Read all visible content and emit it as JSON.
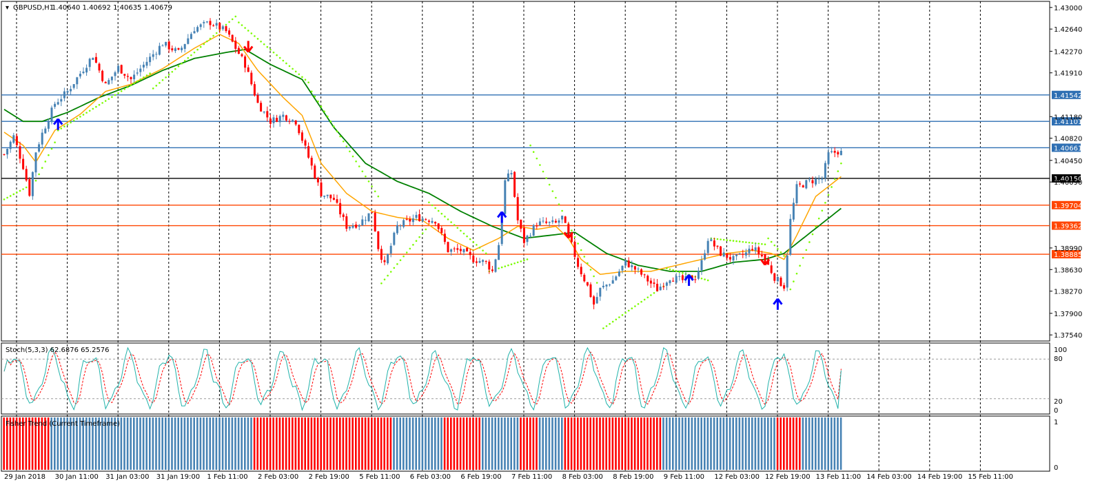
{
  "main_panel": {
    "symbol_label": "GBPUSD,H1",
    "ohlc_label": "1.40640 1.40692 1.40635 1.40679",
    "price_ticks": [
      "1.43000",
      "1.42640",
      "1.42270",
      "1.41910",
      "1.41180",
      "1.40820",
      "1.40450",
      "1.40090",
      "1.38990",
      "1.38630",
      "1.38270",
      "1.37900",
      "1.37540"
    ],
    "levels": [
      {
        "label": "1.41542",
        "value": 1.41542,
        "color": "#2e6fb3",
        "label_bg": "#2e6fb3"
      },
      {
        "label": "1.41101",
        "value": 1.41101,
        "color": "#2e6fb3",
        "label_bg": "#2e6fb3"
      },
      {
        "label": "1.40661",
        "value": 1.40661,
        "color": "#2e6fb3",
        "label_bg": "#2e6fb3"
      },
      {
        "label": "1.40150",
        "value": 1.4015,
        "color": "#000000",
        "label_bg": "#000000"
      },
      {
        "label": "1.39704",
        "value": 1.39704,
        "color": "#ff4500",
        "label_bg": "#ff4500"
      },
      {
        "label": "1.39362",
        "value": 1.39362,
        "color": "#ff4500",
        "label_bg": "#ff4500"
      },
      {
        "label": "1.38885",
        "value": 1.38885,
        "color": "#ff4500",
        "label_bg": "#ff4500"
      }
    ]
  },
  "stoch_panel": {
    "label": "Stoch(5,3,3) 62.6876 65.2576",
    "ticks": [
      "100",
      "80",
      "20",
      "0"
    ]
  },
  "trend_panel": {
    "label": "Fisher Trend (Current Timeframe)",
    "ticks": [
      "1",
      "0"
    ]
  },
  "x_labels": [
    "29 Jan 2018",
    "30 Jan 11:00",
    "31 Jan 03:00",
    "31 Jan 19:00",
    "1 Feb 11:00",
    "2 Feb 03:00",
    "2 Feb 19:00",
    "5 Feb 11:00",
    "6 Feb 03:00",
    "6 Feb 19:00",
    "7 Feb 11:00",
    "8 Feb 03:00",
    "8 Feb 19:00",
    "9 Feb 11:00",
    "12 Feb 03:00",
    "12 Feb 19:00",
    "13 Feb 11:00",
    "14 Feb 03:00",
    "14 Feb 19:00",
    "15 Feb 11:00"
  ],
  "colors": {
    "bull": "#4682b4",
    "bear": "#ff0000",
    "ma_fast": "#ffa500",
    "ma_slow": "#008000",
    "sar": "#7cfc00",
    "stoch_main": "#20b2aa",
    "stoch_signal": "#ff0000",
    "arrow_up": "#0000ff",
    "arrow_down": "#ff0000"
  },
  "chart_data": {
    "type": "candlestick",
    "symbol": "GBPUSD",
    "timeframe": "H1",
    "y_range": [
      1.3745,
      1.4309
    ],
    "price_path": [
      [
        0,
        1.4055
      ],
      [
        3,
        1.4085
      ],
      [
        6,
        1.4035
      ],
      [
        8,
        1.399
      ],
      [
        10,
        1.406
      ],
      [
        12,
        1.409
      ],
      [
        16,
        1.414
      ],
      [
        20,
        1.416
      ],
      [
        24,
        1.419
      ],
      [
        28,
        1.422
      ],
      [
        32,
        1.417
      ],
      [
        36,
        1.42
      ],
      [
        40,
        1.418
      ],
      [
        45,
        1.421
      ],
      [
        50,
        1.424
      ],
      [
        55,
        1.4225
      ],
      [
        60,
        1.4265
      ],
      [
        65,
        1.4275
      ],
      [
        70,
        1.426
      ],
      [
        76,
        1.4205
      ],
      [
        80,
        1.414
      ],
      [
        84,
        1.411
      ],
      [
        88,
        1.412
      ],
      [
        92,
        1.411
      ],
      [
        96,
        1.405
      ],
      [
        100,
        1.399
      ],
      [
        104,
        1.398
      ],
      [
        108,
        1.3935
      ],
      [
        112,
        1.394
      ],
      [
        116,
        1.396
      ],
      [
        118,
        1.39
      ],
      [
        120,
        1.387
      ],
      [
        124,
        1.3935
      ],
      [
        130,
        1.395
      ],
      [
        136,
        1.3945
      ],
      [
        140,
        1.3895
      ],
      [
        144,
        1.3895
      ],
      [
        148,
        1.388
      ],
      [
        152,
        1.3875
      ],
      [
        154,
        1.386
      ],
      [
        156,
        1.3905
      ],
      [
        158,
        1.401
      ],
      [
        160,
        1.4025
      ],
      [
        162,
        1.3945
      ],
      [
        164,
        1.391
      ],
      [
        168,
        1.394
      ],
      [
        174,
        1.394
      ],
      [
        176,
        1.395
      ],
      [
        178,
        1.392
      ],
      [
        181,
        1.387
      ],
      [
        184,
        1.3835
      ],
      [
        186,
        1.3805
      ],
      [
        188,
        1.383
      ],
      [
        192,
        1.3845
      ],
      [
        196,
        1.3875
      ],
      [
        200,
        1.386
      ],
      [
        204,
        1.384
      ],
      [
        206,
        1.383
      ],
      [
        210,
        1.385
      ],
      [
        214,
        1.3845
      ],
      [
        218,
        1.385
      ],
      [
        220,
        1.3875
      ],
      [
        222,
        1.3915
      ],
      [
        226,
        1.389
      ],
      [
        230,
        1.388
      ],
      [
        234,
        1.389
      ],
      [
        236,
        1.39
      ],
      [
        240,
        1.388
      ],
      [
        243,
        1.385
      ],
      [
        246,
        1.3835
      ],
      [
        248,
        1.3945
      ],
      [
        250,
        1.4
      ],
      [
        254,
        1.401
      ],
      [
        258,
        1.4015
      ],
      [
        260,
        1.4055
      ],
      [
        263,
        1.406
      ],
      [
        264,
        1.4058
      ]
    ],
    "ma_fast": [
      [
        0,
        1.4092
      ],
      [
        6,
        1.407
      ],
      [
        10,
        1.4042
      ],
      [
        16,
        1.4095
      ],
      [
        24,
        1.4122
      ],
      [
        32,
        1.416
      ],
      [
        40,
        1.4172
      ],
      [
        50,
        1.4198
      ],
      [
        60,
        1.4232
      ],
      [
        68,
        1.4255
      ],
      [
        74,
        1.424
      ],
      [
        80,
        1.4195
      ],
      [
        88,
        1.415
      ],
      [
        94,
        1.412
      ],
      [
        100,
        1.404
      ],
      [
        108,
        1.399
      ],
      [
        116,
        1.396
      ],
      [
        124,
        1.395
      ],
      [
        132,
        1.3945
      ],
      [
        140,
        1.3915
      ],
      [
        148,
        1.3895
      ],
      [
        156,
        1.3915
      ],
      [
        162,
        1.3935
      ],
      [
        168,
        1.393
      ],
      [
        174,
        1.3935
      ],
      [
        178,
        1.3915
      ],
      [
        182,
        1.388
      ],
      [
        188,
        1.3855
      ],
      [
        196,
        1.386
      ],
      [
        204,
        1.386
      ],
      [
        212,
        1.387
      ],
      [
        220,
        1.388
      ],
      [
        228,
        1.389
      ],
      [
        236,
        1.3895
      ],
      [
        242,
        1.389
      ],
      [
        246,
        1.388
      ],
      [
        250,
        1.392
      ],
      [
        256,
        1.3985
      ],
      [
        264,
        1.4018
      ]
    ],
    "ma_slow": [
      [
        0,
        1.413
      ],
      [
        6,
        1.411
      ],
      [
        12,
        1.411
      ],
      [
        20,
        1.4125
      ],
      [
        30,
        1.415
      ],
      [
        40,
        1.417
      ],
      [
        50,
        1.4195
      ],
      [
        60,
        1.4215
      ],
      [
        70,
        1.4225
      ],
      [
        76,
        1.423
      ],
      [
        84,
        1.4205
      ],
      [
        94,
        1.418
      ],
      [
        104,
        1.41
      ],
      [
        114,
        1.404
      ],
      [
        124,
        1.401
      ],
      [
        134,
        1.399
      ],
      [
        144,
        1.396
      ],
      [
        154,
        1.3935
      ],
      [
        164,
        1.3915
      ],
      [
        172,
        1.392
      ],
      [
        180,
        1.3925
      ],
      [
        190,
        1.389
      ],
      [
        200,
        1.387
      ],
      [
        210,
        1.386
      ],
      [
        220,
        1.386
      ],
      [
        230,
        1.3875
      ],
      [
        240,
        1.388
      ],
      [
        246,
        1.389
      ],
      [
        252,
        1.3915
      ],
      [
        258,
        1.394
      ],
      [
        264,
        1.3965
      ]
    ],
    "sar_segments": [
      {
        "start": 0,
        "end": 7,
        "from": 1.398,
        "to": 1.4
      },
      {
        "start": 8,
        "end": 16,
        "from": 1.399,
        "to": 1.4075
      },
      {
        "start": 17,
        "end": 46,
        "from": 1.4095,
        "to": 1.419
      },
      {
        "start": 47,
        "end": 73,
        "from": 1.4165,
        "to": 1.4285
      },
      {
        "start": 74,
        "end": 96,
        "from": 1.4275,
        "to": 1.4175
      },
      {
        "start": 97,
        "end": 118,
        "from": 1.416,
        "to": 1.3985
      },
      {
        "start": 119,
        "end": 133,
        "from": 1.384,
        "to": 1.393
      },
      {
        "start": 134,
        "end": 152,
        "from": 1.3975,
        "to": 1.389
      },
      {
        "start": 153,
        "end": 165,
        "from": 1.386,
        "to": 1.388
      },
      {
        "start": 166,
        "end": 188,
        "from": 1.407,
        "to": 1.383
      },
      {
        "start": 189,
        "end": 208,
        "from": 1.3765,
        "to": 1.3835
      },
      {
        "start": 209,
        "end": 222,
        "from": 1.3865,
        "to": 1.3845
      },
      {
        "start": 223,
        "end": 240,
        "from": 1.3915,
        "to": 1.3905
      },
      {
        "start": 241,
        "end": 247,
        "from": 1.3915,
        "to": 1.388
      },
      {
        "start": 248,
        "end": 264,
        "from": 1.383,
        "to": 1.404
      }
    ],
    "arrows": [
      {
        "bar": 17,
        "price": 1.4105,
        "dir": "up"
      },
      {
        "bar": 77,
        "price": 1.4235,
        "dir": "down"
      },
      {
        "bar": 157,
        "price": 1.395,
        "dir": "up"
      },
      {
        "bar": 178,
        "price": 1.3925,
        "dir": "down"
      },
      {
        "bar": 216,
        "price": 1.3845,
        "dir": "up"
      },
      {
        "bar": 240,
        "price": 1.388,
        "dir": "down"
      },
      {
        "bar": 244,
        "price": 1.3805,
        "dir": "up"
      }
    ],
    "stochastic": {
      "k_period": 5,
      "d_period": 3,
      "slowing": 3,
      "main": 62.6876,
      "signal": 65.2576,
      "levels": [
        80,
        20
      ],
      "range": [
        0,
        100
      ]
    },
    "trend_bars": [
      {
        "start": 0,
        "end": 14,
        "color": "bear"
      },
      {
        "start": 15,
        "end": 78,
        "color": "bull"
      },
      {
        "start": 79,
        "end": 122,
        "color": "bear"
      },
      {
        "start": 123,
        "end": 138,
        "color": "bull"
      },
      {
        "start": 139,
        "end": 150,
        "color": "bear"
      },
      {
        "start": 151,
        "end": 162,
        "color": "bull"
      },
      {
        "start": 163,
        "end": 168,
        "color": "bear"
      },
      {
        "start": 169,
        "end": 176,
        "color": "bull"
      },
      {
        "start": 177,
        "end": 207,
        "color": "bear"
      },
      {
        "start": 208,
        "end": 243,
        "color": "bull"
      },
      {
        "start": 244,
        "end": 251,
        "color": "bear"
      },
      {
        "start": 252,
        "end": 264,
        "color": "bull"
      }
    ],
    "total_bars": 265
  }
}
